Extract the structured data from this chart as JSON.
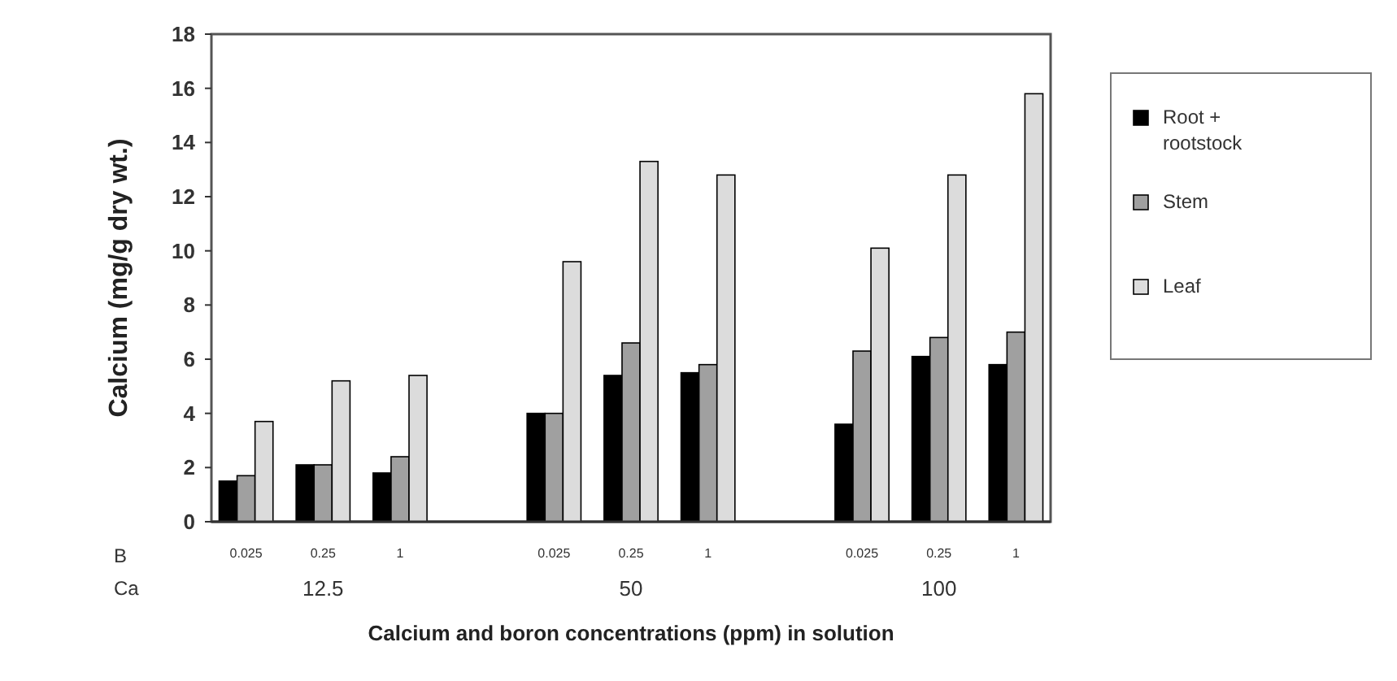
{
  "chart_data": {
    "type": "bar",
    "xlabel": "Calcium and boron concentrations (ppm) in solution",
    "ylabel": "Calcium (mg/g dry wt.)",
    "categories": [
      "0.025",
      "0.25",
      "1",
      null,
      "0.025",
      "0.25",
      "1",
      null,
      "0.025",
      "0.25",
      "1"
    ],
    "series": [
      {
        "name": "Root + rootstock",
        "color": "#000000",
        "values": [
          1.5,
          2.1,
          1.8,
          null,
          4.0,
          5.4,
          5.5,
          null,
          3.6,
          6.1,
          5.8
        ]
      },
      {
        "name": "Stem",
        "color": "#a0a0a0",
        "values": [
          1.7,
          2.1,
          2.4,
          null,
          4.0,
          6.6,
          5.8,
          null,
          6.3,
          6.8,
          7.0
        ]
      },
      {
        "name": "Leaf",
        "color": "#dcdcdc",
        "values": [
          3.7,
          5.2,
          5.4,
          null,
          9.6,
          13.3,
          12.8,
          null,
          10.1,
          12.8,
          15.8
        ]
      }
    ],
    "ylim": [
      0,
      18
    ],
    "yticks": [
      0,
      2,
      4,
      6,
      8,
      10,
      12,
      14,
      16,
      18
    ],
    "legend": "right",
    "annotations": [
      "B",
      "Ca",
      "12.5",
      "50",
      "100"
    ]
  }
}
